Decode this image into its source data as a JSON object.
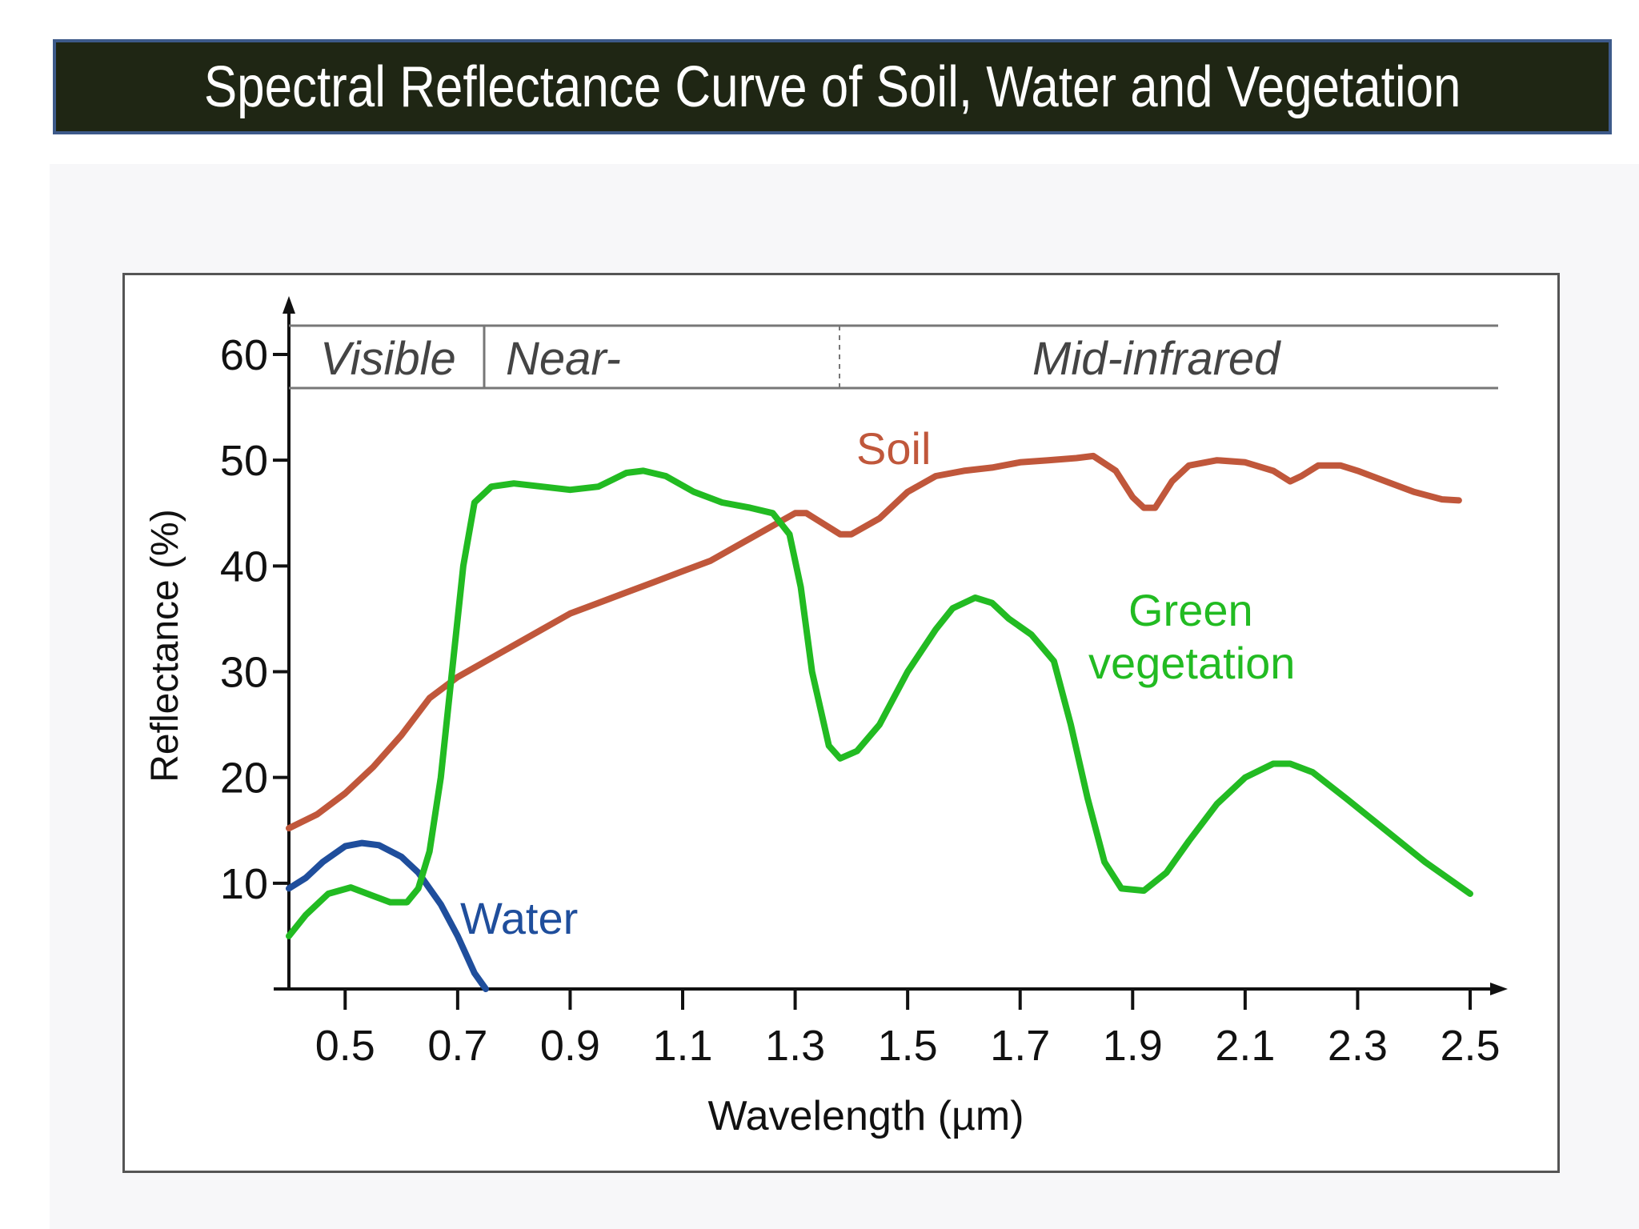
{
  "page_title": "Spectral Reflectance Curve of Soil, Water and Vegetation",
  "colors": {
    "title_bar_bg": "#1f2614",
    "title_bar_border": "#3d5a8a",
    "soil": "#c0573b",
    "water": "#1f4e9c",
    "vegetation": "#22bb22"
  },
  "chart_data": {
    "type": "line",
    "title": "",
    "xlabel": "Wavelength (µm)",
    "ylabel": "Reflectance (%)",
    "xlim": [
      0.4,
      2.5
    ],
    "ylim": [
      0,
      60
    ],
    "x_ticks": [
      "0.5",
      "0.7",
      "0.9",
      "1.1",
      "1.3",
      "1.5",
      "1.7",
      "1.9",
      "2.1",
      "2.3",
      "2.5"
    ],
    "y_ticks": [
      "10",
      "20",
      "30",
      "40",
      "50",
      "60"
    ],
    "grid": false,
    "regions": [
      {
        "label": "Visible",
        "from": 0.4,
        "to": 0.75
      },
      {
        "label": "Near-",
        "from": 0.75,
        "to": 1.38
      },
      {
        "label": "Mid-infrared",
        "from": 1.38,
        "to": 2.55
      }
    ],
    "series": [
      {
        "name": "Soil",
        "color": "#c0573b",
        "points": [
          [
            0.4,
            15.2
          ],
          [
            0.45,
            16.5
          ],
          [
            0.5,
            18.5
          ],
          [
            0.55,
            21
          ],
          [
            0.6,
            24
          ],
          [
            0.65,
            27.5
          ],
          [
            0.7,
            29.5
          ],
          [
            0.75,
            31
          ],
          [
            0.8,
            32.5
          ],
          [
            0.85,
            34
          ],
          [
            0.9,
            35.5
          ],
          [
            0.95,
            36.5
          ],
          [
            1.0,
            37.5
          ],
          [
            1.05,
            38.5
          ],
          [
            1.1,
            39.5
          ],
          [
            1.15,
            40.5
          ],
          [
            1.2,
            42
          ],
          [
            1.25,
            43.5
          ],
          [
            1.3,
            45
          ],
          [
            1.32,
            45
          ],
          [
            1.35,
            44
          ],
          [
            1.38,
            43
          ],
          [
            1.4,
            43
          ],
          [
            1.45,
            44.5
          ],
          [
            1.5,
            47
          ],
          [
            1.55,
            48.5
          ],
          [
            1.6,
            49
          ],
          [
            1.65,
            49.3
          ],
          [
            1.7,
            49.8
          ],
          [
            1.75,
            50
          ],
          [
            1.8,
            50.2
          ],
          [
            1.83,
            50.4
          ],
          [
            1.87,
            49
          ],
          [
            1.9,
            46.5
          ],
          [
            1.92,
            45.5
          ],
          [
            1.94,
            45.5
          ],
          [
            1.97,
            48
          ],
          [
            2.0,
            49.5
          ],
          [
            2.05,
            50
          ],
          [
            2.1,
            49.8
          ],
          [
            2.15,
            49
          ],
          [
            2.18,
            48
          ],
          [
            2.2,
            48.5
          ],
          [
            2.23,
            49.5
          ],
          [
            2.27,
            49.5
          ],
          [
            2.3,
            49
          ],
          [
            2.35,
            48
          ],
          [
            2.4,
            47
          ],
          [
            2.45,
            46.3
          ],
          [
            2.48,
            46.2
          ]
        ]
      },
      {
        "name": "Water",
        "color": "#1f4e9c",
        "points": [
          [
            0.4,
            9.5
          ],
          [
            0.43,
            10.5
          ],
          [
            0.46,
            12
          ],
          [
            0.5,
            13.5
          ],
          [
            0.53,
            13.8
          ],
          [
            0.56,
            13.6
          ],
          [
            0.6,
            12.5
          ],
          [
            0.63,
            11
          ],
          [
            0.67,
            8
          ],
          [
            0.7,
            5
          ],
          [
            0.73,
            1.5
          ],
          [
            0.75,
            0
          ]
        ]
      },
      {
        "name": "Green vegetation",
        "color": "#22bb22",
        "points": [
          [
            0.4,
            5
          ],
          [
            0.43,
            7
          ],
          [
            0.47,
            9
          ],
          [
            0.51,
            9.6
          ],
          [
            0.55,
            8.8
          ],
          [
            0.58,
            8.2
          ],
          [
            0.61,
            8.2
          ],
          [
            0.63,
            9.5
          ],
          [
            0.65,
            13
          ],
          [
            0.67,
            20
          ],
          [
            0.69,
            30
          ],
          [
            0.71,
            40
          ],
          [
            0.73,
            46
          ],
          [
            0.76,
            47.5
          ],
          [
            0.8,
            47.8
          ],
          [
            0.85,
            47.5
          ],
          [
            0.9,
            47.2
          ],
          [
            0.95,
            47.5
          ],
          [
            1.0,
            48.8
          ],
          [
            1.03,
            49
          ],
          [
            1.07,
            48.5
          ],
          [
            1.12,
            47
          ],
          [
            1.17,
            46
          ],
          [
            1.22,
            45.5
          ],
          [
            1.26,
            45
          ],
          [
            1.29,
            43
          ],
          [
            1.31,
            38
          ],
          [
            1.33,
            30
          ],
          [
            1.36,
            23
          ],
          [
            1.38,
            21.8
          ],
          [
            1.41,
            22.5
          ],
          [
            1.45,
            25
          ],
          [
            1.5,
            30
          ],
          [
            1.55,
            34
          ],
          [
            1.58,
            36
          ],
          [
            1.62,
            37
          ],
          [
            1.65,
            36.5
          ],
          [
            1.68,
            35
          ],
          [
            1.72,
            33.5
          ],
          [
            1.76,
            31
          ],
          [
            1.79,
            25
          ],
          [
            1.82,
            18
          ],
          [
            1.85,
            12
          ],
          [
            1.88,
            9.5
          ],
          [
            1.92,
            9.3
          ],
          [
            1.96,
            11
          ],
          [
            2.0,
            14
          ],
          [
            2.05,
            17.5
          ],
          [
            2.1,
            20
          ],
          [
            2.15,
            21.3
          ],
          [
            2.18,
            21.3
          ],
          [
            2.22,
            20.5
          ],
          [
            2.28,
            18
          ],
          [
            2.35,
            15
          ],
          [
            2.42,
            12
          ],
          [
            2.5,
            9
          ]
        ]
      }
    ],
    "annotations": [
      {
        "text": "Soil",
        "color": "#c0573b"
      },
      {
        "text": "Water",
        "color": "#1f4e9c"
      },
      {
        "text": "Green",
        "color": "#22bb22"
      },
      {
        "text": "vegetation",
        "color": "#22bb22"
      }
    ]
  }
}
